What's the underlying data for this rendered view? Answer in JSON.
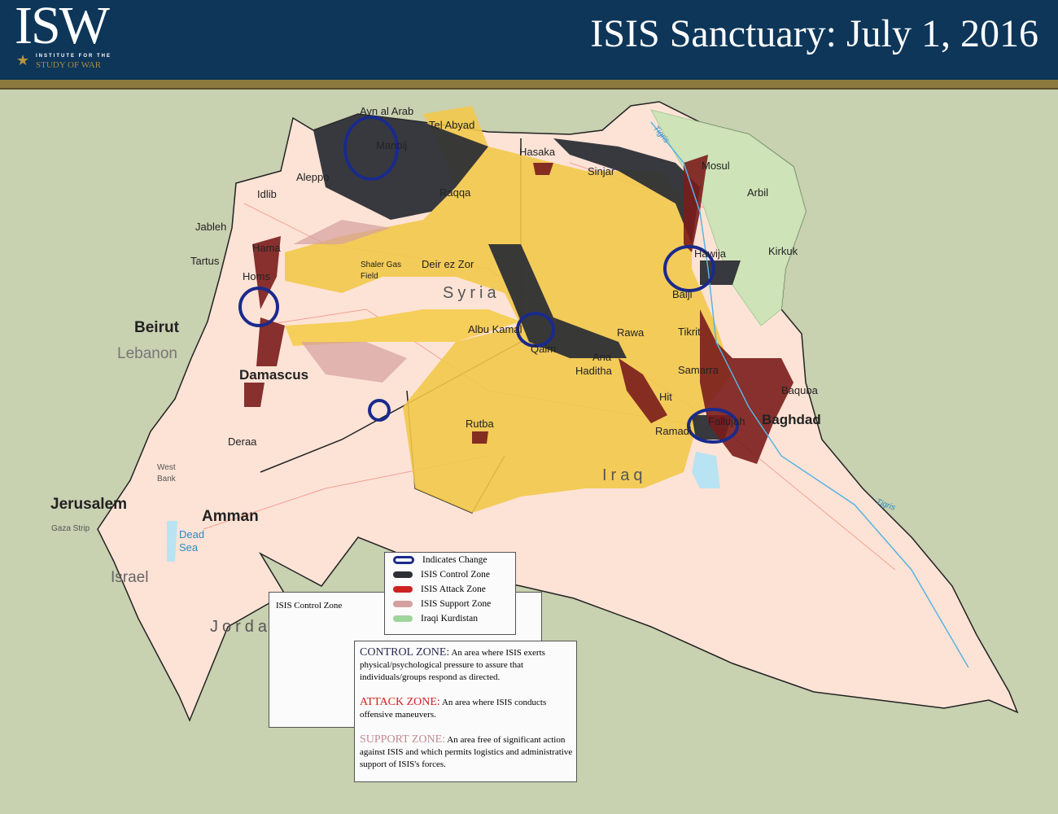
{
  "header": {
    "logo": "ISW",
    "logo_line1": "INSTITUTE FOR THE",
    "logo_line2": "STUDY OF WAR",
    "title": "ISIS Sanctuary: July 1, 2016"
  },
  "colors": {
    "header_bg": "#0d3659",
    "gold": "#8d7a3e",
    "control": "#2d2f36",
    "attack": "#cc2222",
    "attack_dark": "#7a1c1c",
    "support": "#d4a0a0",
    "kurdistan": "#9fd49c",
    "isis_sanctuary": "#f2c84b",
    "land": "#fde3d6",
    "water": "#c8d1b0",
    "change_ring": "#1a2a8c"
  },
  "labels": [
    "Ayn al Arab",
    "Tel Abyad",
    "Manbij",
    "Aleppo",
    "Hasaka",
    "Sinjar",
    "Mosul",
    "Arbil",
    "Idlib",
    "Raqqa",
    "Jableh",
    "Hama",
    "Tartus",
    "Shaler Gas Field",
    "Deir ez Zor",
    "Homs",
    "Hawija",
    "Kirkuk",
    "Baiji",
    "Albu Kamal",
    "Qaim",
    "Rawa",
    "Tikrit",
    "Ana",
    "Haditha",
    "Samarra",
    "Baquba",
    "Hit",
    "Ramadi",
    "Fallujah",
    "Rutba",
    "Deraa",
    "West Bank",
    "Gaza Strip",
    "Dead Sea"
  ],
  "major_labels": {
    "beirut": "Beirut",
    "damascus": "Damascus",
    "baghdad": "Baghdad",
    "jerusalem": "Jerusalem",
    "amman": "Amman"
  },
  "countries": {
    "syria": "Syria",
    "lebanon": "Lebanon",
    "iraq": "Iraq",
    "jordan": "Jordan",
    "israel": "Israel"
  },
  "rivers": [
    "Tigris",
    "Tigris"
  ],
  "legend": {
    "items": [
      {
        "label": "Indicates Change",
        "icon": "ring"
      },
      {
        "label": "ISIS Control Zone",
        "color": "#2d2f36"
      },
      {
        "label": "ISIS Attack Zone",
        "color": "#cc2222"
      },
      {
        "label": "ISIS Support Zone",
        "color": "#d4a0a0"
      },
      {
        "label": "Iraqi Kurdistan",
        "color": "#9fd49c"
      }
    ],
    "back_label": "ISIS Control Zone"
  },
  "definitions": [
    {
      "term": "CONTROL ZONE:",
      "color": "#2a2a50",
      "text": "An area where ISIS exerts physical/psychological pressure to assure that individuals/groups respond as directed."
    },
    {
      "term": "ATTACK ZONE:",
      "color": "#d42020",
      "text": "An area where ISIS conducts offensive maneuvers."
    },
    {
      "term": "SUPPORT ZONE:",
      "color": "#c08a90",
      "text": "An area free of significant action against ISIS and which permits logistics and administrative support of ISIS's forces."
    }
  ]
}
